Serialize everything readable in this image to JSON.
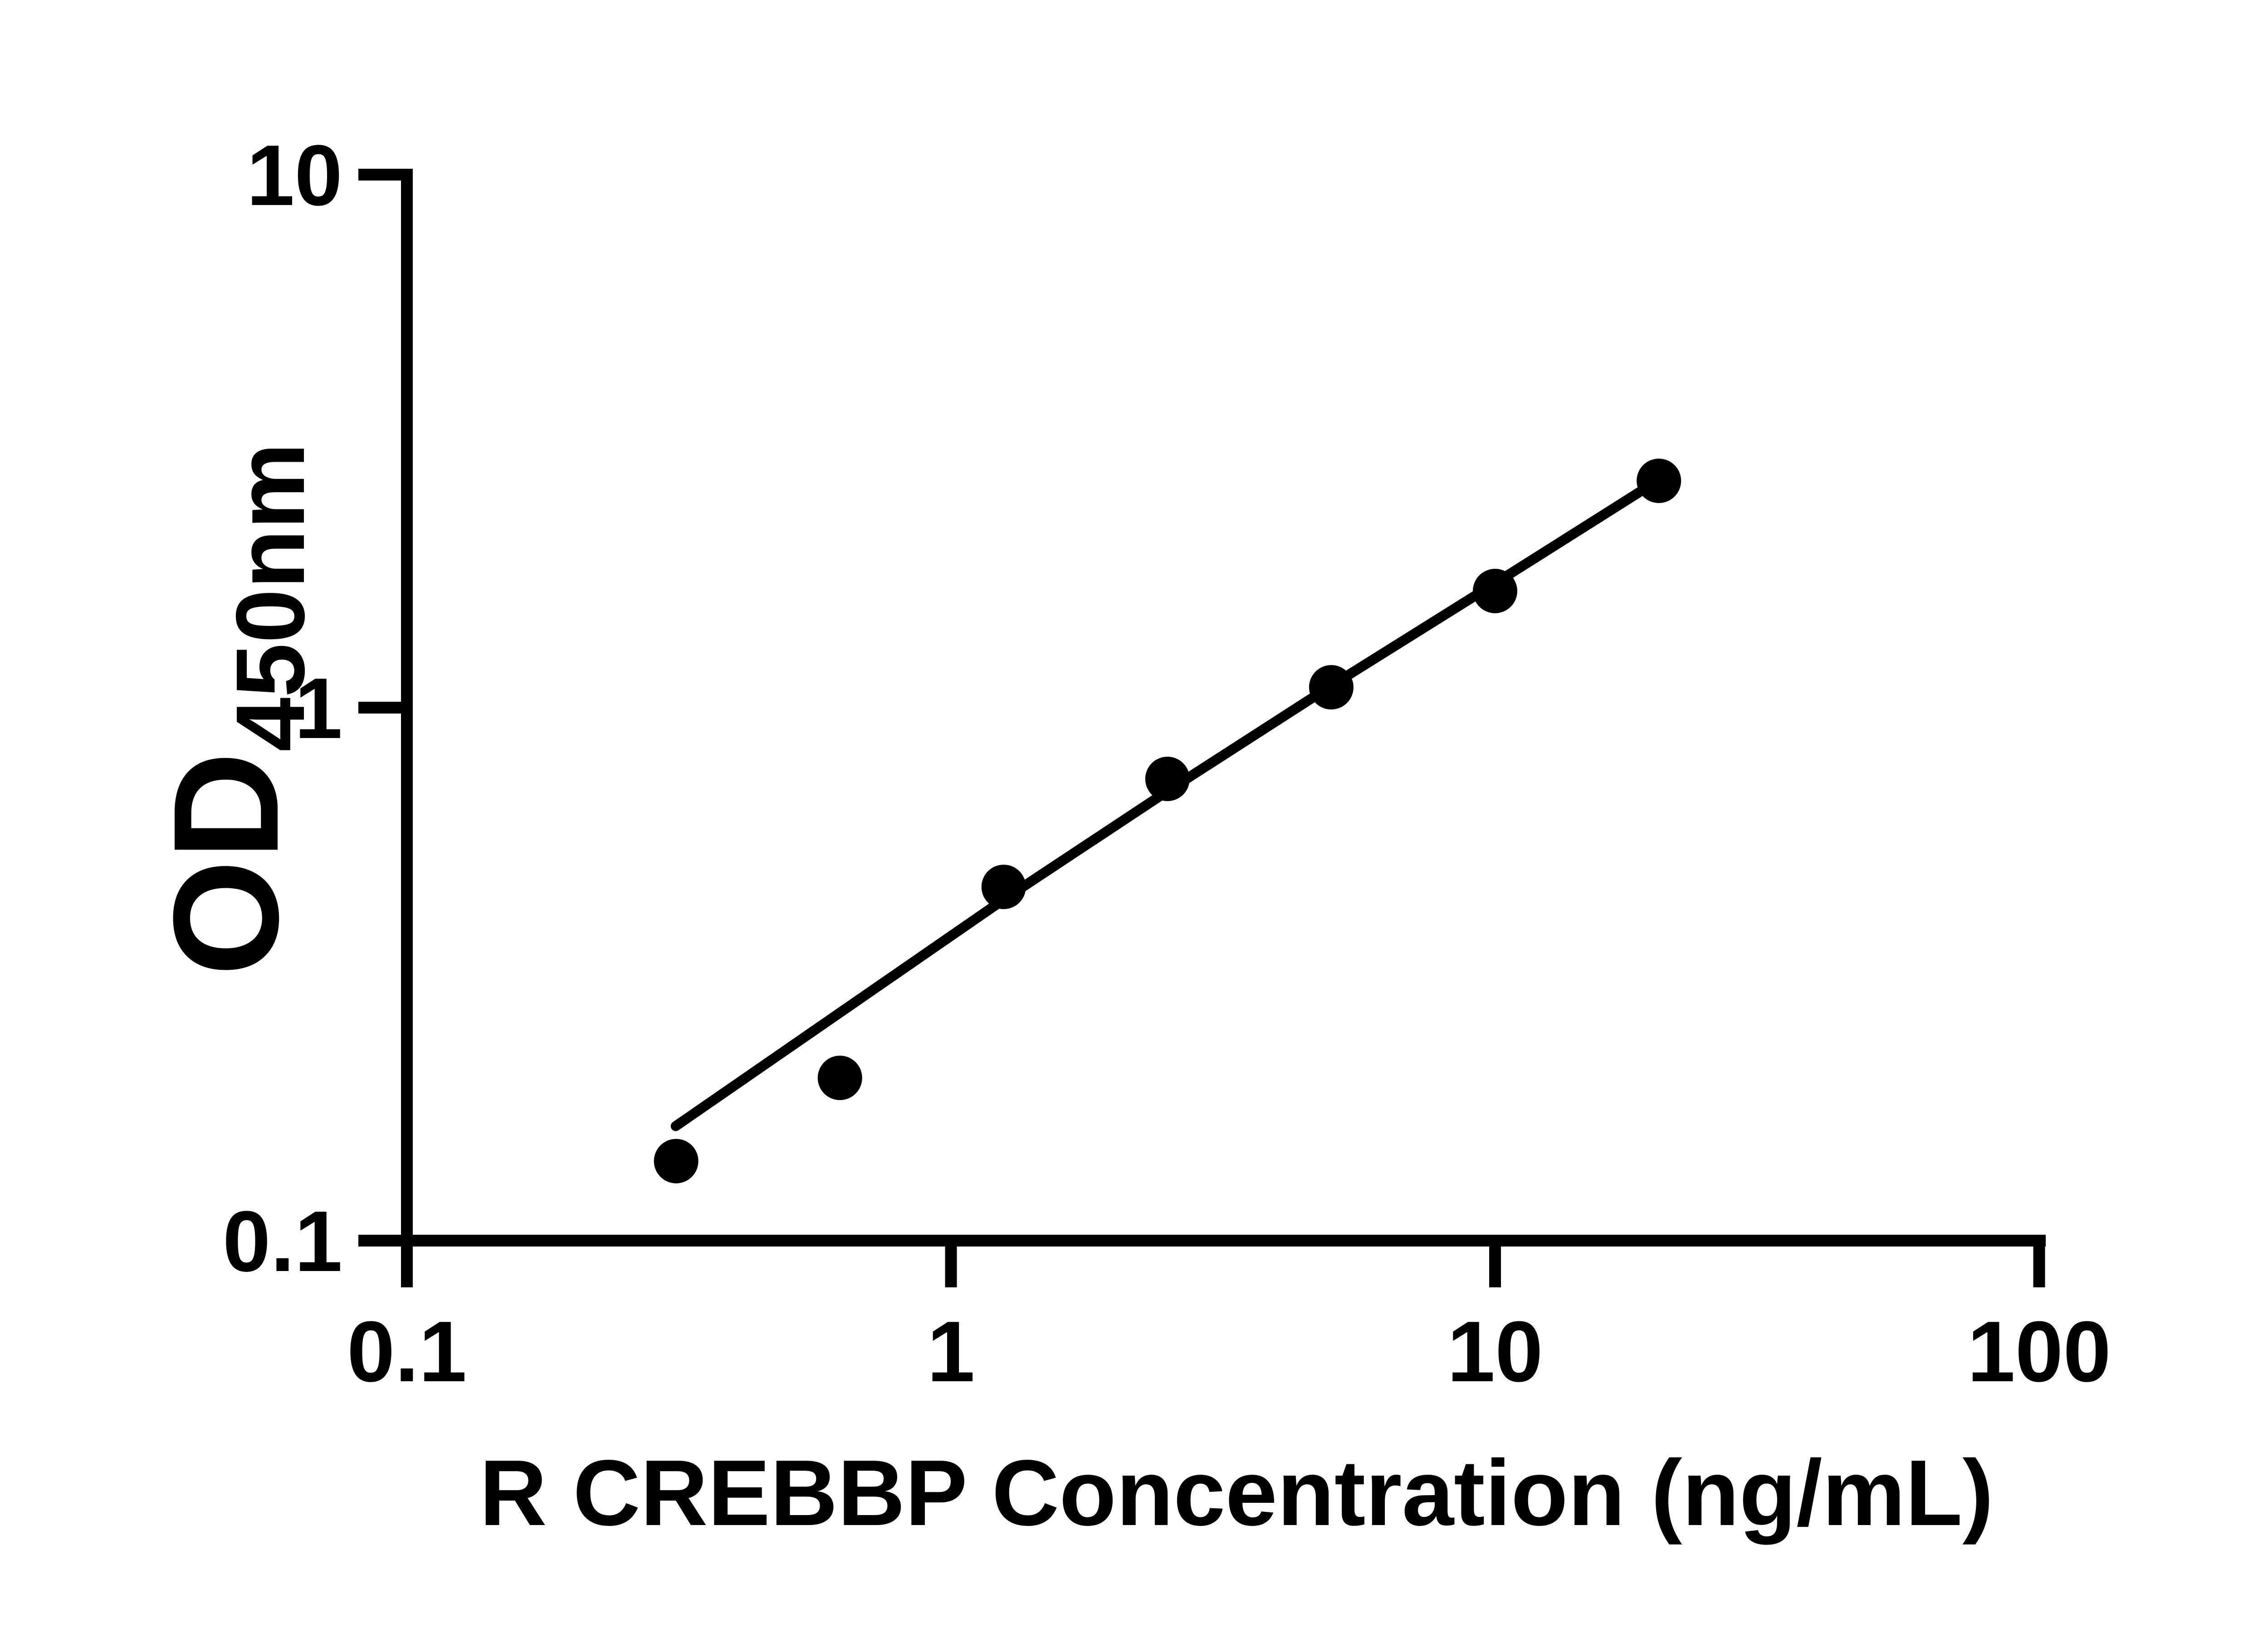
{
  "figure": {
    "background_color": "#ffffff",
    "ink_color": "#000000"
  },
  "chart_data": {
    "type": "scatter",
    "title": "",
    "xlabel": "R CREBBP Concentration (ng/mL)",
    "ylabel_main": "OD",
    "ylabel_sub": "450nm",
    "x_scale": "log",
    "y_scale": "log",
    "xlim": [
      0.1,
      100
    ],
    "ylim": [
      0.1,
      10
    ],
    "grid": "off",
    "legend": "none",
    "x_ticks": [
      {
        "value": 0.1,
        "label": "0.1"
      },
      {
        "value": 1,
        "label": "1"
      },
      {
        "value": 10,
        "label": "10"
      },
      {
        "value": 100,
        "label": "100"
      }
    ],
    "y_ticks": [
      {
        "value": 10,
        "label": "10"
      },
      {
        "value": 1,
        "label": "1"
      },
      {
        "value": 0.1,
        "label": "0.1"
      }
    ],
    "series": [
      {
        "name": "standard-curve-points",
        "marker": "filled-circle",
        "marker_color": "#000000",
        "points": [
          {
            "x": 0.3125,
            "od": 0.141
          },
          {
            "x": 0.625,
            "od": 0.202
          },
          {
            "x": 1.25,
            "od": 0.461
          },
          {
            "x": 2.5,
            "od": 0.735
          },
          {
            "x": 5,
            "od": 1.092
          },
          {
            "x": 10,
            "od": 1.655
          },
          {
            "x": 20,
            "od": 2.664
          }
        ]
      }
    ],
    "trend_line": {
      "name": "fitted-standard-curve",
      "color": "#000000",
      "points": [
        {
          "x": 0.312,
          "od": 0.164
        },
        {
          "x": 1.244,
          "od": 0.435
        },
        {
          "x": 2.478,
          "od": 0.693
        },
        {
          "x": 4.947,
          "od": 1.092
        },
        {
          "x": 9.935,
          "od": 1.704
        },
        {
          "x": 19.8,
          "od": 2.658
        }
      ]
    }
  }
}
